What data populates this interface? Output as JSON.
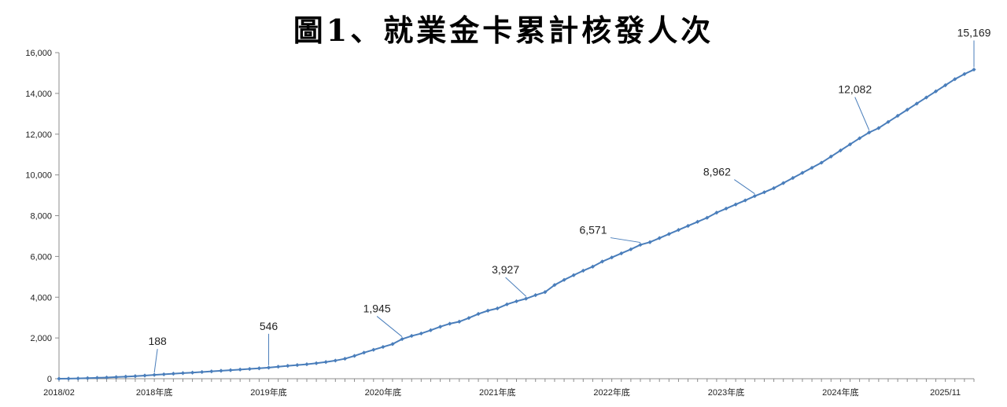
{
  "title": "圖1、就業金卡累計核發人次",
  "chart_data": {
    "type": "line",
    "title": "圖1、就業金卡累計核發人次",
    "xlabel": "",
    "ylabel": "",
    "ylim": [
      0,
      16000
    ],
    "yticks": [
      0,
      2000,
      4000,
      6000,
      8000,
      10000,
      12000,
      14000,
      16000
    ],
    "ytick_labels": [
      "0",
      "2,000",
      "4,000",
      "6,000",
      "8,000",
      "10,000",
      "12,000",
      "14,000",
      "16,000"
    ],
    "x_tick_labels": [
      {
        "index": 0,
        "label": "2018/02"
      },
      {
        "index": 10,
        "label": "2018年底"
      },
      {
        "index": 22,
        "label": "2019年底"
      },
      {
        "index": 34,
        "label": "2020年底"
      },
      {
        "index": 46,
        "label": "2021年底"
      },
      {
        "index": 58,
        "label": "2022年底"
      },
      {
        "index": 70,
        "label": "2023年底"
      },
      {
        "index": 82,
        "label": "2024年底"
      },
      {
        "index": 93,
        "label": "2025/11"
      }
    ],
    "series": [
      {
        "color": "#4a7ebb",
        "values": [
          0,
          5,
          15,
          30,
          45,
          60,
          80,
          100,
          125,
          155,
          188,
          215,
          245,
          275,
          300,
          330,
          360,
          390,
          420,
          450,
          480,
          510,
          546,
          590,
          630,
          670,
          710,
          760,
          820,
          890,
          980,
          1120,
          1280,
          1420,
          1560,
          1700,
          1945,
          2100,
          2220,
          2380,
          2550,
          2700,
          2800,
          2980,
          3180,
          3340,
          3450,
          3650,
          3800,
          3927,
          4100,
          4250,
          4600,
          4850,
          5080,
          5300,
          5500,
          5750,
          5950,
          6150,
          6350,
          6571,
          6700,
          6900,
          7100,
          7300,
          7500,
          7700,
          7900,
          8150,
          8350,
          8550,
          8750,
          8962,
          9150,
          9350,
          9600,
          9850,
          10100,
          10350,
          10600,
          10900,
          11200,
          11500,
          11800,
          12082,
          12300,
          12600,
          12900,
          13200,
          13500,
          13800,
          14100,
          14400,
          14700,
          14950,
          15169
        ]
      }
    ],
    "annotations": [
      {
        "index": 10,
        "value": 188,
        "text": "188"
      },
      {
        "index": 22,
        "value": 546,
        "text": "546"
      },
      {
        "index": 36,
        "value": 1945,
        "text": "1,945"
      },
      {
        "index": 49,
        "value": 3927,
        "text": "3,927"
      },
      {
        "index": 61,
        "value": 6571,
        "text": "6,571"
      },
      {
        "index": 73,
        "value": 8962,
        "text": "8,962"
      },
      {
        "index": 85,
        "value": 12082,
        "text": "12,082"
      },
      {
        "index": 96,
        "value": 15169,
        "text": "15,169"
      }
    ],
    "grid": false,
    "legend": "none"
  }
}
